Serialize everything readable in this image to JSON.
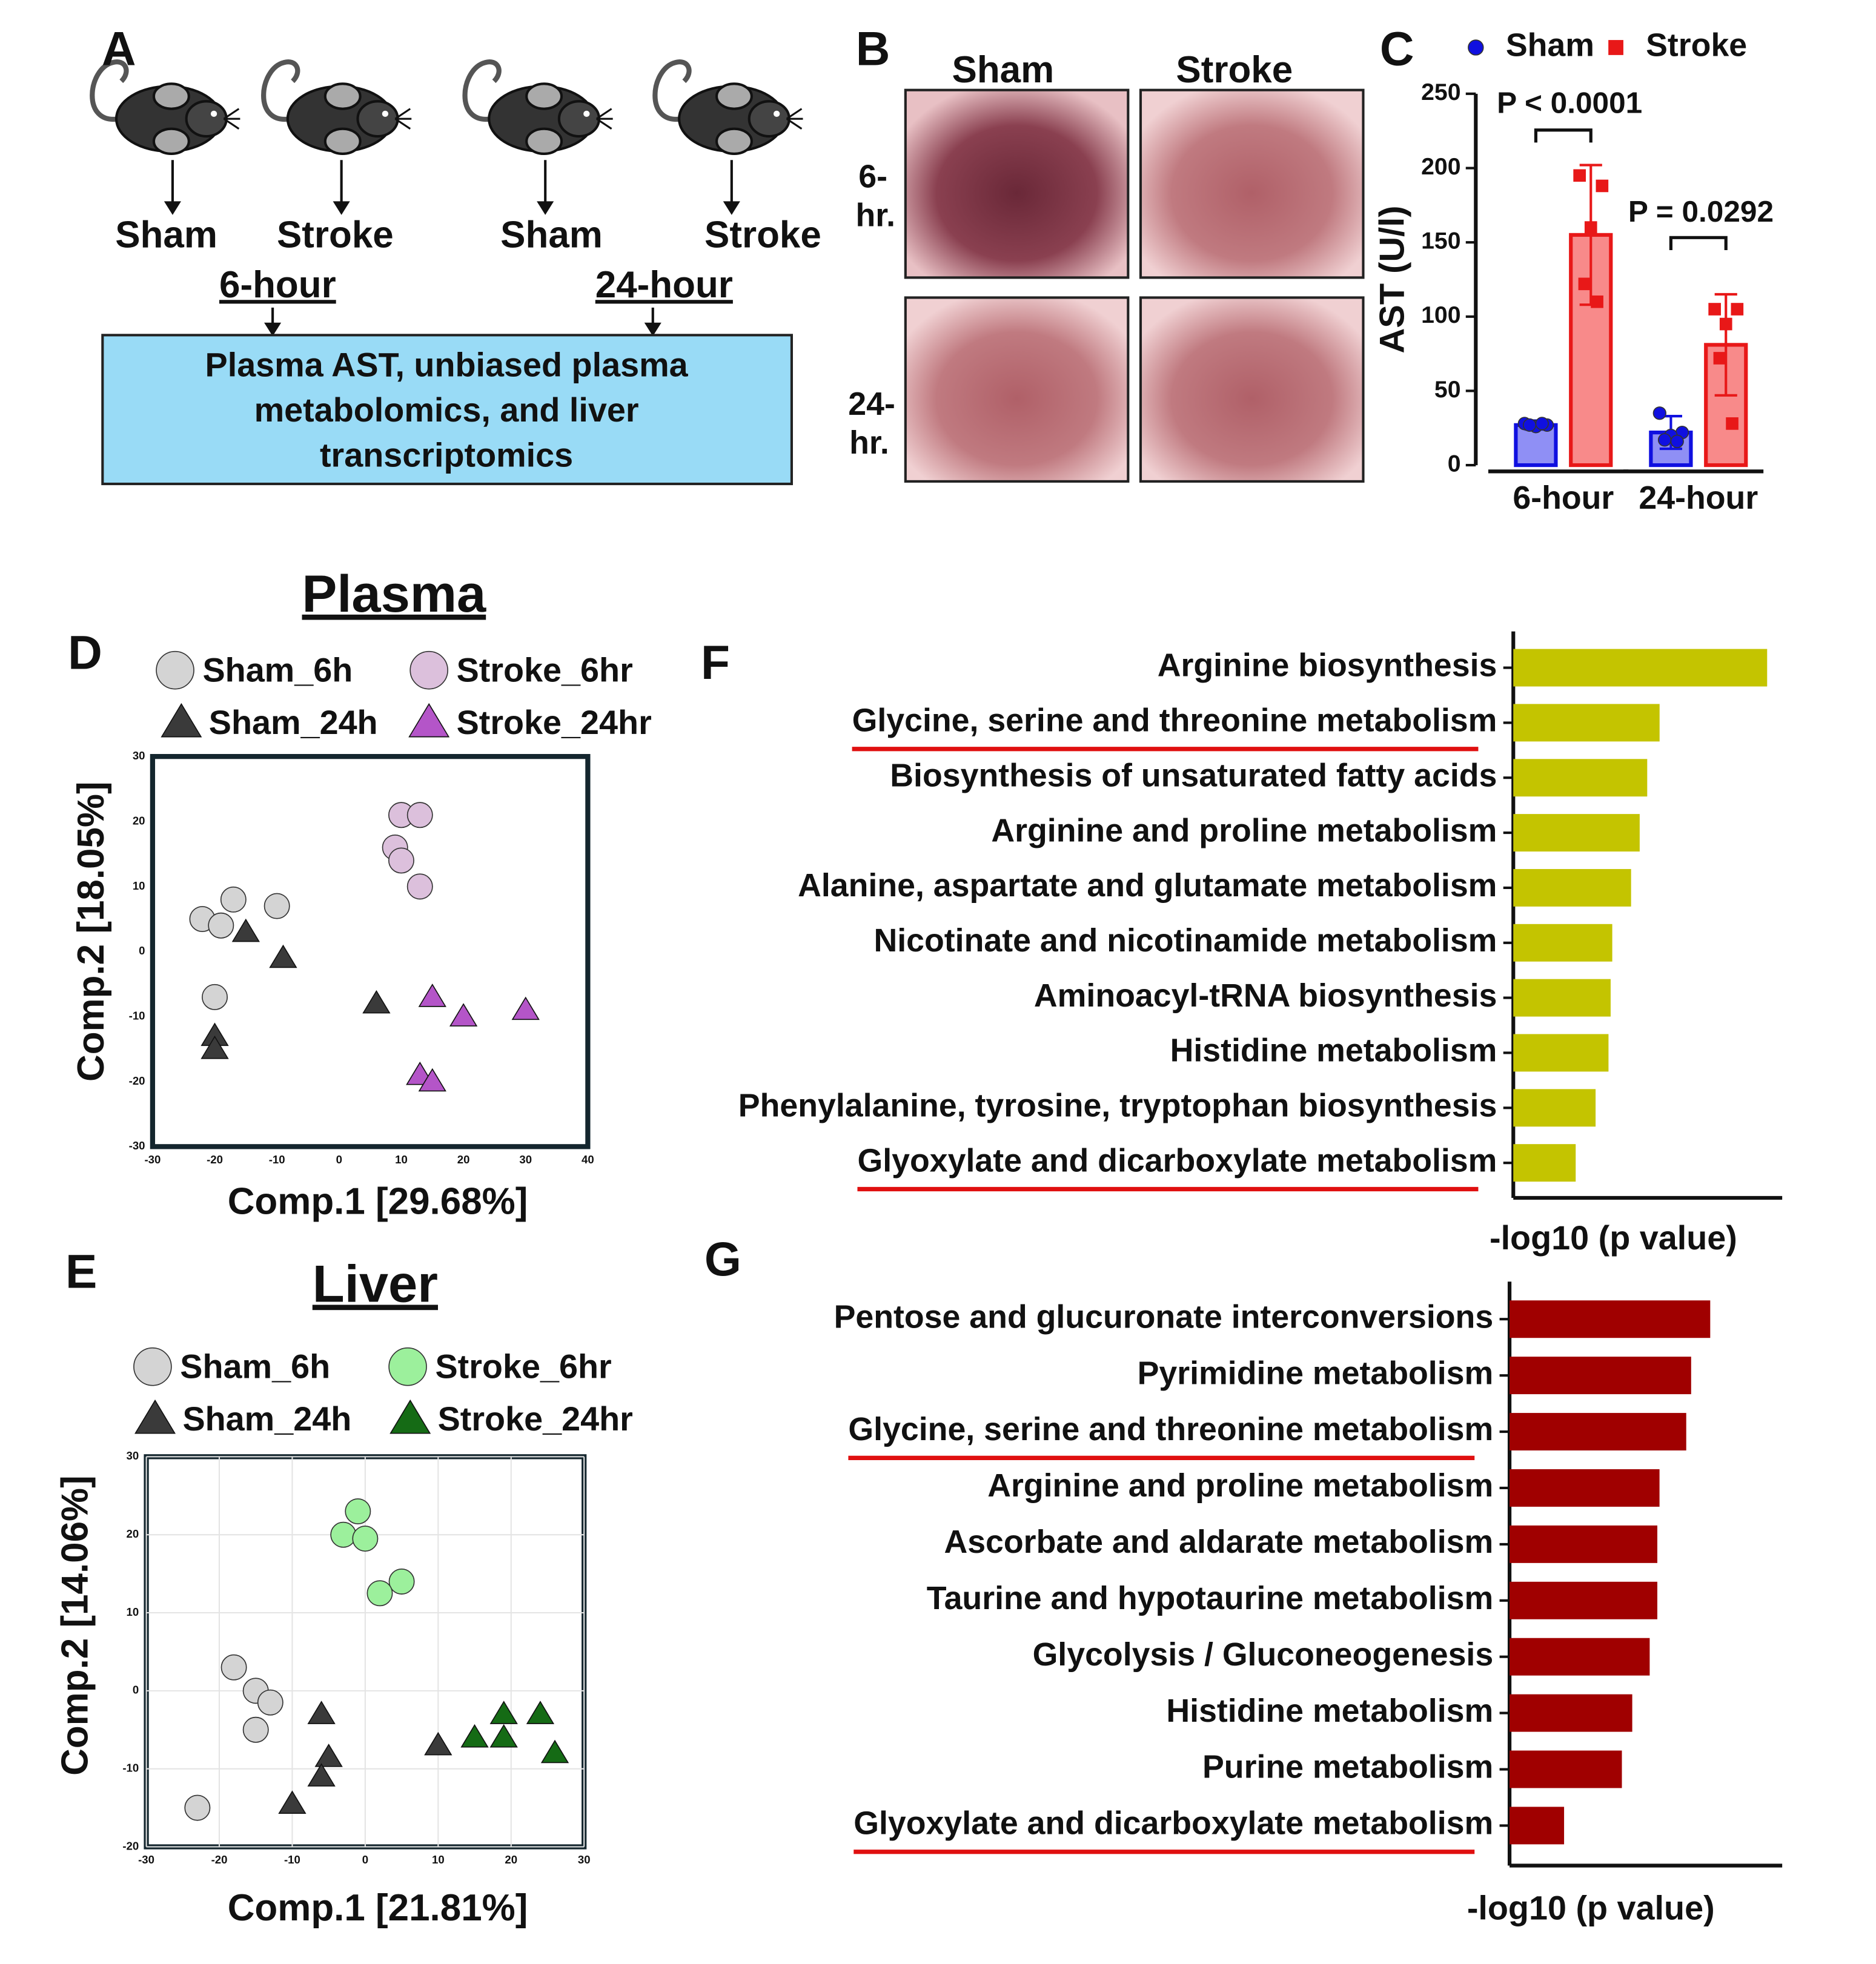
{
  "panel_labels": [
    "A",
    "B",
    "C",
    "D",
    "E",
    "F",
    "G"
  ],
  "panel_a": {
    "groups": [
      "Sham",
      "Stroke",
      "Sham",
      "Stroke"
    ],
    "timepoints": [
      "6-hour",
      "24-hour"
    ],
    "box_lines": [
      "Plasma AST, unbiased plasma",
      "metabolomics, and liver",
      "transcriptomics"
    ]
  },
  "panel_b": {
    "columns": [
      "Sham",
      "Stroke"
    ],
    "rows": [
      [
        "6-",
        "hr."
      ],
      [
        "24-",
        "hr."
      ]
    ]
  },
  "chart_data": [
    {
      "type": "bar",
      "ylabel": "AST (U/l)",
      "categories": [
        "6-hour",
        "24-hour"
      ],
      "series": [
        {
          "name": "Sham",
          "color": "#1010e0",
          "fill": "#8f8ff5",
          "values": [
            27,
            22
          ],
          "errors": [
            3,
            11
          ],
          "points": [
            [
              28,
              27,
              26,
              27,
              28
            ],
            [
              35,
              22,
              20,
              17,
              16
            ]
          ]
        },
        {
          "name": "Stroke",
          "color": "#e81818",
          "fill": "#f88a8a",
          "values": [
            155,
            81
          ],
          "errors": [
            47,
            34
          ],
          "points": [
            [
              195,
              188,
              160,
              122,
              110
            ],
            [
              105,
              105,
              95,
              72,
              28
            ]
          ]
        }
      ],
      "ylim": [
        0,
        250
      ],
      "yticks": [
        0,
        50,
        100,
        150,
        200,
        250
      ],
      "annotations": [
        "P < 0.0001",
        "P = 0.0292"
      ]
    },
    {
      "type": "scatter",
      "title": "Plasma",
      "xlabel": "Comp.1 [29.68%]",
      "ylabel": "Comp.2 [18.05%]",
      "xlim": [
        -30,
        40
      ],
      "xticks": [
        -30,
        -20,
        -10,
        0,
        10,
        20,
        30,
        40
      ],
      "ylim": [
        -30,
        30
      ],
      "yticks": [
        -30,
        -20,
        -10,
        0,
        10,
        20,
        30
      ],
      "grid": false,
      "series": [
        {
          "name": "Sham_6h",
          "marker": "circle",
          "color": "#d4d4d4",
          "x": [
            -22,
            -19,
            -17,
            -10,
            -20
          ],
          "y": [
            5,
            4,
            8,
            7,
            -7
          ]
        },
        {
          "name": "Stroke_6hr",
          "marker": "circle",
          "color": "#dcc0dc",
          "x": [
            10,
            13,
            9,
            10,
            13
          ],
          "y": [
            21,
            21,
            16,
            14,
            10
          ]
        },
        {
          "name": "Sham_24h",
          "marker": "triangle",
          "color": "#3a3a3a",
          "x": [
            -15,
            -9,
            -20,
            -20,
            6
          ],
          "y": [
            3,
            -1,
            -13,
            -15,
            -8
          ]
        },
        {
          "name": "Stroke_24hr",
          "marker": "triangle",
          "color": "#b455c8",
          "x": [
            15,
            20,
            30,
            13,
            15
          ],
          "y": [
            -7,
            -10,
            -9,
            -19,
            -20
          ]
        }
      ]
    },
    {
      "type": "scatter",
      "title": "Liver",
      "xlabel": "Comp.1 [21.81%]",
      "ylabel": "Comp.2 [14.06%]",
      "xlim": [
        -30,
        30
      ],
      "xticks": [
        -30,
        -20,
        -10,
        0,
        10,
        20,
        30
      ],
      "ylim": [
        -20,
        30
      ],
      "yticks": [
        -20,
        -10,
        0,
        10,
        20,
        30
      ],
      "grid": true,
      "series": [
        {
          "name": "Sham_6h",
          "marker": "circle",
          "color": "#d4d4d4",
          "x": [
            -18,
            -15,
            -13,
            -15,
            -23
          ],
          "y": [
            3,
            0,
            -1.5,
            -5,
            -15
          ]
        },
        {
          "name": "Stroke_6hr",
          "marker": "circle",
          "color": "#9cf09c",
          "x": [
            -1,
            -3,
            0,
            5,
            2
          ],
          "y": [
            23,
            20,
            19.5,
            14,
            12.5
          ]
        },
        {
          "name": "Sham_24h",
          "marker": "triangle",
          "color": "#3a3a3a",
          "x": [
            -6,
            -5,
            -6,
            -10,
            10
          ],
          "y": [
            -3,
            -8.5,
            -11,
            -14.5,
            -7
          ]
        },
        {
          "name": "Stroke_24hr",
          "marker": "triangle",
          "color": "#156b15",
          "x": [
            15,
            19,
            19,
            24,
            26
          ],
          "y": [
            -6,
            -3,
            -6,
            -3,
            -8
          ]
        }
      ]
    },
    {
      "type": "barh",
      "xlabel": "-log10 (p value)",
      "color": "#c4c400",
      "xlim": [
        0,
        5
      ],
      "categories": [
        "Arginine biosynthesis",
        "Glycine, serine and threonine metabolism",
        "Biosynthesis of unsaturated fatty acids",
        "Arginine and proline metabolism",
        "Alanine, aspartate and glutamate metabolism",
        "Nicotinate and nicotinamide metabolism",
        "Aminoacyl-tRNA biosynthesis",
        "Histidine metabolism",
        "Phenylalanine, tyrosine, tryptophan biosynthesis",
        "Glyoxylate and dicarboxylate metabolism"
      ],
      "values": [
        4.72,
        2.72,
        2.49,
        2.35,
        2.19,
        1.84,
        1.81,
        1.77,
        1.53,
        1.16
      ],
      "underline": [
        false,
        true,
        false,
        false,
        false,
        false,
        false,
        false,
        false,
        true
      ]
    },
    {
      "type": "barh",
      "xlabel": "-log10 (p value)",
      "color": "#a00000",
      "xlim": [
        0,
        5
      ],
      "categories": [
        "Pentose and glucuronate interconversions",
        "Pyrimidine metabolism",
        "Glycine, serine and threonine metabolism",
        "Arginine and proline metabolism",
        "Ascorbate and aldarate metabolism",
        "Taurine and hypotaurine metabolism",
        "Glycolysis / Gluconeogenesis",
        "Histidine metabolism",
        "Purine metabolism",
        "Glyoxylate and dicarboxylate metabolism"
      ],
      "values": [
        3.68,
        3.33,
        3.24,
        2.75,
        2.71,
        2.71,
        2.57,
        2.25,
        2.06,
        1.0
      ],
      "underline": [
        false,
        false,
        true,
        false,
        false,
        false,
        false,
        false,
        false,
        true
      ]
    }
  ]
}
